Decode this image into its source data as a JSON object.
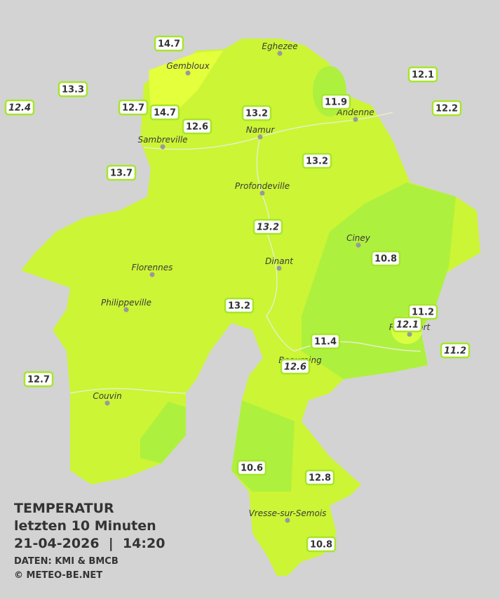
{
  "title": {
    "heading": "TEMPERATUR",
    "subheading": "letzten 10 Minuten",
    "datetime": "21-04-2026  |  14:20",
    "source": "DATEN: KMI & BMCB",
    "copyright": "© METEO-BE.NET"
  },
  "cities": [
    "Eghezee",
    "Gembloux",
    "Andenne",
    "Namur",
    "Sambreville",
    "Profondeville",
    "Ciney",
    "Dinant",
    "Florennes",
    "Philippeville",
    "Rochefort",
    "Beauraing",
    "Couvin",
    "Vresse-sur-Semois"
  ],
  "stations": [
    "14.7",
    "13.3",
    "12.4",
    "12.7",
    "14.7",
    "12.6",
    "13.2",
    "11.9",
    "12.1",
    "12.2",
    "13.7",
    "13.2",
    "13.2",
    "10.8",
    "13.2",
    "11.2",
    "12.1",
    "11.4",
    "11.2",
    "12.6",
    "12.7",
    "10.6",
    "12.8",
    "10.8"
  ]
}
